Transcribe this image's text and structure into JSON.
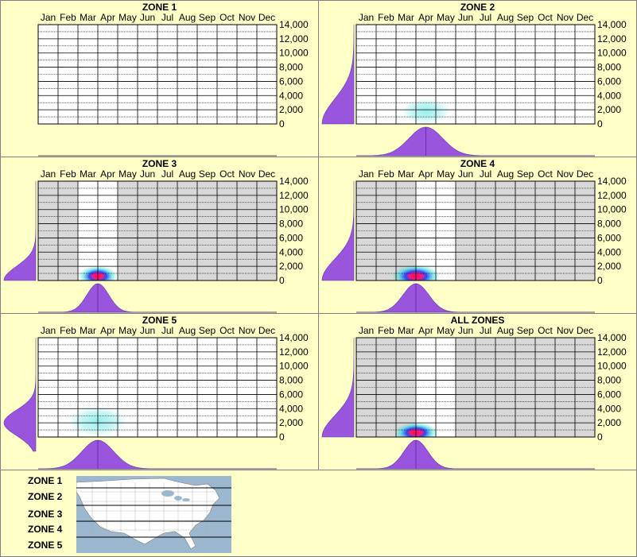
{
  "months": [
    "Jan",
    "Feb",
    "Mar",
    "Apr",
    "May",
    "Jun",
    "Jul",
    "Aug",
    "Sep",
    "Oct",
    "Nov",
    "Dec"
  ],
  "y_ticks": [
    "14,000",
    "12,000",
    "10,000",
    "8,000",
    "6,000",
    "4,000",
    "2,000",
    "0"
  ],
  "colors": {
    "background": "#ffffc8",
    "plot_bg": "#ffffff",
    "shade": "#d8d8d8",
    "grid": "#000000",
    "dist": "#9955dd",
    "heat_low": "#40e0e0",
    "heat_mid": "#2040ff",
    "heat_high": "#ff0066",
    "water": "#9cb8d0",
    "land": "#ffffff"
  },
  "chart_data": [
    {
      "type": "heatmap",
      "title": "ZONE 1",
      "x_unit": "month",
      "y_unit": "elevation",
      "ylim": [
        0,
        14000
      ],
      "hotspot": null,
      "intensity": 0,
      "shade_months": [],
      "month_dist": null,
      "elev_dist": null
    },
    {
      "type": "heatmap",
      "title": "ZONE 2",
      "x_unit": "month",
      "y_unit": "elevation",
      "ylim": [
        0,
        14000
      ],
      "hotspot": {
        "month": 4.0,
        "elev": 1800
      },
      "intensity": 0.3,
      "spread_months": 1.0,
      "spread_elev": 1100,
      "shade_months": [],
      "month_dist": {
        "peak": 4.0,
        "width": 0.85
      },
      "elev_dist": {
        "peak": 0,
        "width": 3500
      }
    },
    {
      "type": "heatmap",
      "title": "ZONE 3",
      "x_unit": "month",
      "y_unit": "elevation",
      "ylim": [
        0,
        14000
      ],
      "hotspot": {
        "month": 3.5,
        "elev": 600
      },
      "intensity": 1.0,
      "spread_months": 0.8,
      "spread_elev": 900,
      "shade_months": [
        1,
        2,
        5,
        6,
        7,
        8,
        9,
        10,
        11,
        12
      ],
      "month_dist": {
        "peak": 3.5,
        "width": 0.55
      },
      "elev_dist": {
        "peak": 0,
        "width": 2000
      }
    },
    {
      "type": "heatmap",
      "title": "ZONE 4",
      "x_unit": "month",
      "y_unit": "elevation",
      "ylim": [
        0,
        14000
      ],
      "hotspot": {
        "month": 3.5,
        "elev": 600
      },
      "intensity": 0.95,
      "spread_months": 1.0,
      "spread_elev": 1000,
      "shade_months": [
        1,
        2,
        3,
        6,
        7,
        8,
        9,
        10,
        11,
        12
      ],
      "month_dist": {
        "peak": 3.5,
        "width": 0.65
      },
      "elev_dist": {
        "peak": 0,
        "width": 3000
      }
    },
    {
      "type": "heatmap",
      "title": "ZONE 5",
      "x_unit": "month",
      "y_unit": "elevation",
      "ylim": [
        0,
        14000
      ],
      "hotspot": {
        "month": 3.5,
        "elev": 2200
      },
      "intensity": 0.3,
      "spread_months": 1.2,
      "spread_elev": 1300,
      "shade_months": [],
      "month_dist": {
        "peak": 3.5,
        "width": 0.8
      },
      "elev_dist": {
        "peak": 2000,
        "width": 1800
      }
    },
    {
      "type": "heatmap",
      "title": "ALL ZONES",
      "x_unit": "month",
      "y_unit": "elevation",
      "ylim": [
        0,
        14000
      ],
      "hotspot": {
        "month": 3.5,
        "elev": 600
      },
      "intensity": 1.0,
      "spread_months": 0.9,
      "spread_elev": 900,
      "shade_months": [
        1,
        2,
        3,
        6,
        7,
        8,
        9,
        10,
        11,
        12
      ],
      "month_dist": {
        "peak": 3.5,
        "width": 0.6
      },
      "elev_dist": {
        "peak": 0,
        "width": 3000
      }
    }
  ],
  "legend": {
    "zones": [
      "ZONE 1",
      "ZONE 2",
      "ZONE 3",
      "ZONE 4",
      "ZONE 5"
    ],
    "map_alt": "map-of-zones"
  }
}
